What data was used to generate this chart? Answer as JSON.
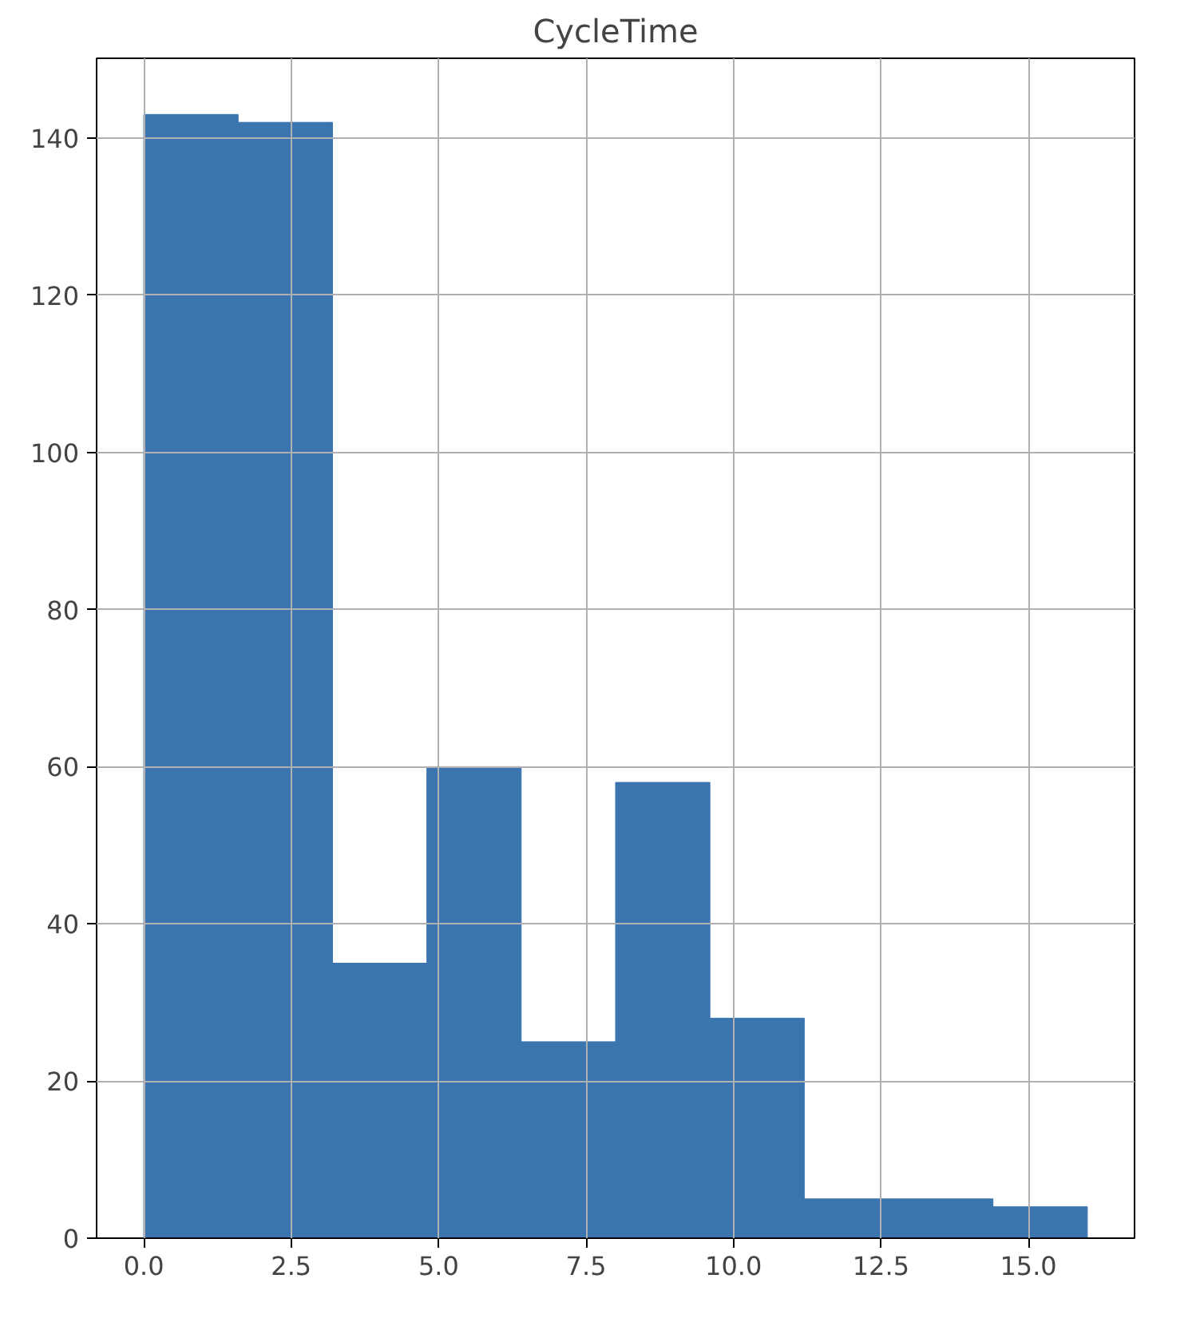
{
  "chart_data": {
    "type": "histogram",
    "title": "CycleTime",
    "bins": [
      0,
      1.6,
      3.2,
      4.8,
      6.4,
      8.0,
      9.6,
      11.2,
      12.8,
      14.4,
      16.0
    ],
    "values": [
      143,
      142,
      35,
      60,
      25,
      58,
      28,
      5,
      5,
      4
    ],
    "color": "#3b75af",
    "xlim": [
      -0.8,
      16.8
    ],
    "ylim": [
      0,
      150.15
    ],
    "xticks": [
      {
        "value": 0,
        "label": "0.0"
      },
      {
        "value": 2.5,
        "label": "2.5"
      },
      {
        "value": 5,
        "label": "5.0"
      },
      {
        "value": 7.5,
        "label": "7.5"
      },
      {
        "value": 10,
        "label": "10.0"
      },
      {
        "value": 12.5,
        "label": "12.5"
      },
      {
        "value": 15,
        "label": "15.0"
      }
    ],
    "yticks": [
      0,
      20,
      40,
      60,
      80,
      100,
      120,
      140
    ],
    "grid": true
  }
}
